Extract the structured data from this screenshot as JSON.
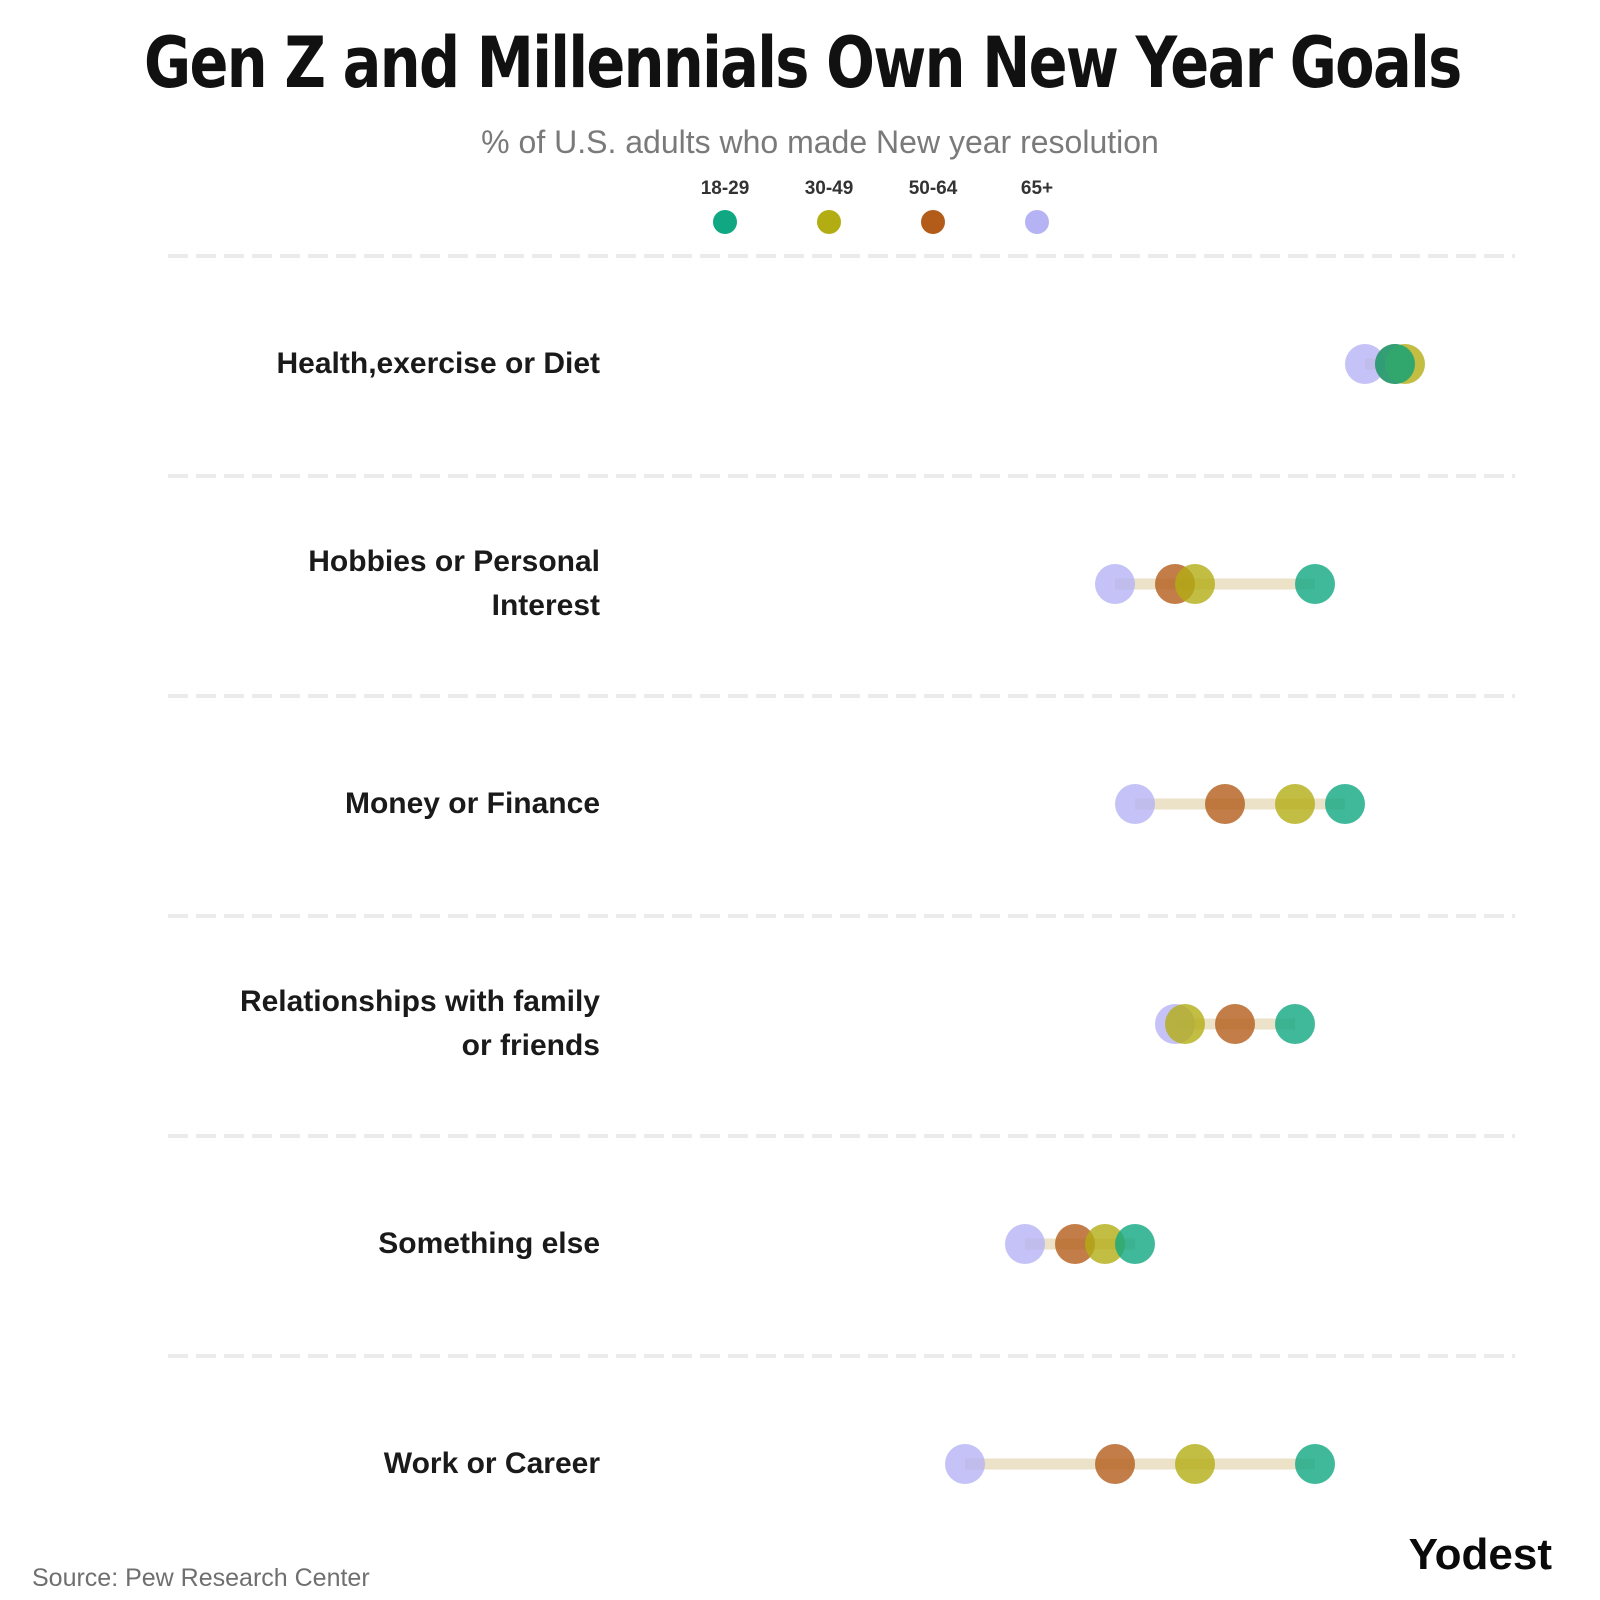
{
  "header": {
    "title": "Gen Z and Millennials Own New Year Goals",
    "subtitle": "% of U.S. adults who made New year resolution"
  },
  "footer": {
    "source": "Source: Pew Research Center",
    "brand": "Yodest"
  },
  "chart_data": {
    "type": "dumbbell",
    "title": "Gen Z and Millennials Own New Year Goals",
    "subtitle": "% of U.S. adults who made New year resolution",
    "xlabel": "",
    "ylabel": "",
    "xlim": [
      0,
      100
    ],
    "grid": "dashed horizontal separators",
    "legend_position": "top-center",
    "categories": [
      "Health,exercise or Diet",
      "Hobbies or Personal Interest",
      "Money or Finance",
      "Relationships with family or friends",
      "Something else",
      "Work or Career"
    ],
    "category_lines": [
      [
        "Health,exercise or Diet"
      ],
      [
        "Hobbies or Personal",
        "Interest"
      ],
      [
        "Money or Finance"
      ],
      [
        "Relationships with family",
        "or friends"
      ],
      [
        "Something else"
      ],
      [
        "Work or Career"
      ]
    ],
    "series": [
      {
        "name": "18-29",
        "color": "#10a882",
        "values": [
          79.5,
          71.5,
          74.5,
          69.5,
          53.5,
          71.5
        ]
      },
      {
        "name": "30-49",
        "color": "#b3ad14",
        "values": [
          80.5,
          59.5,
          69.5,
          58.5,
          50.5,
          59.5
        ]
      },
      {
        "name": "50-64",
        "color": "#b35c1a",
        "values": [
          79.5,
          57.5,
          62.5,
          63.5,
          47.5,
          51.5
        ]
      },
      {
        "name": "65+",
        "color": "#b5b3f4",
        "values": [
          76.5,
          51.5,
          53.5,
          57.5,
          42.5,
          36.5
        ]
      }
    ],
    "range_bar_color": "#ece2c8",
    "separator_color": "#ebebeb"
  }
}
